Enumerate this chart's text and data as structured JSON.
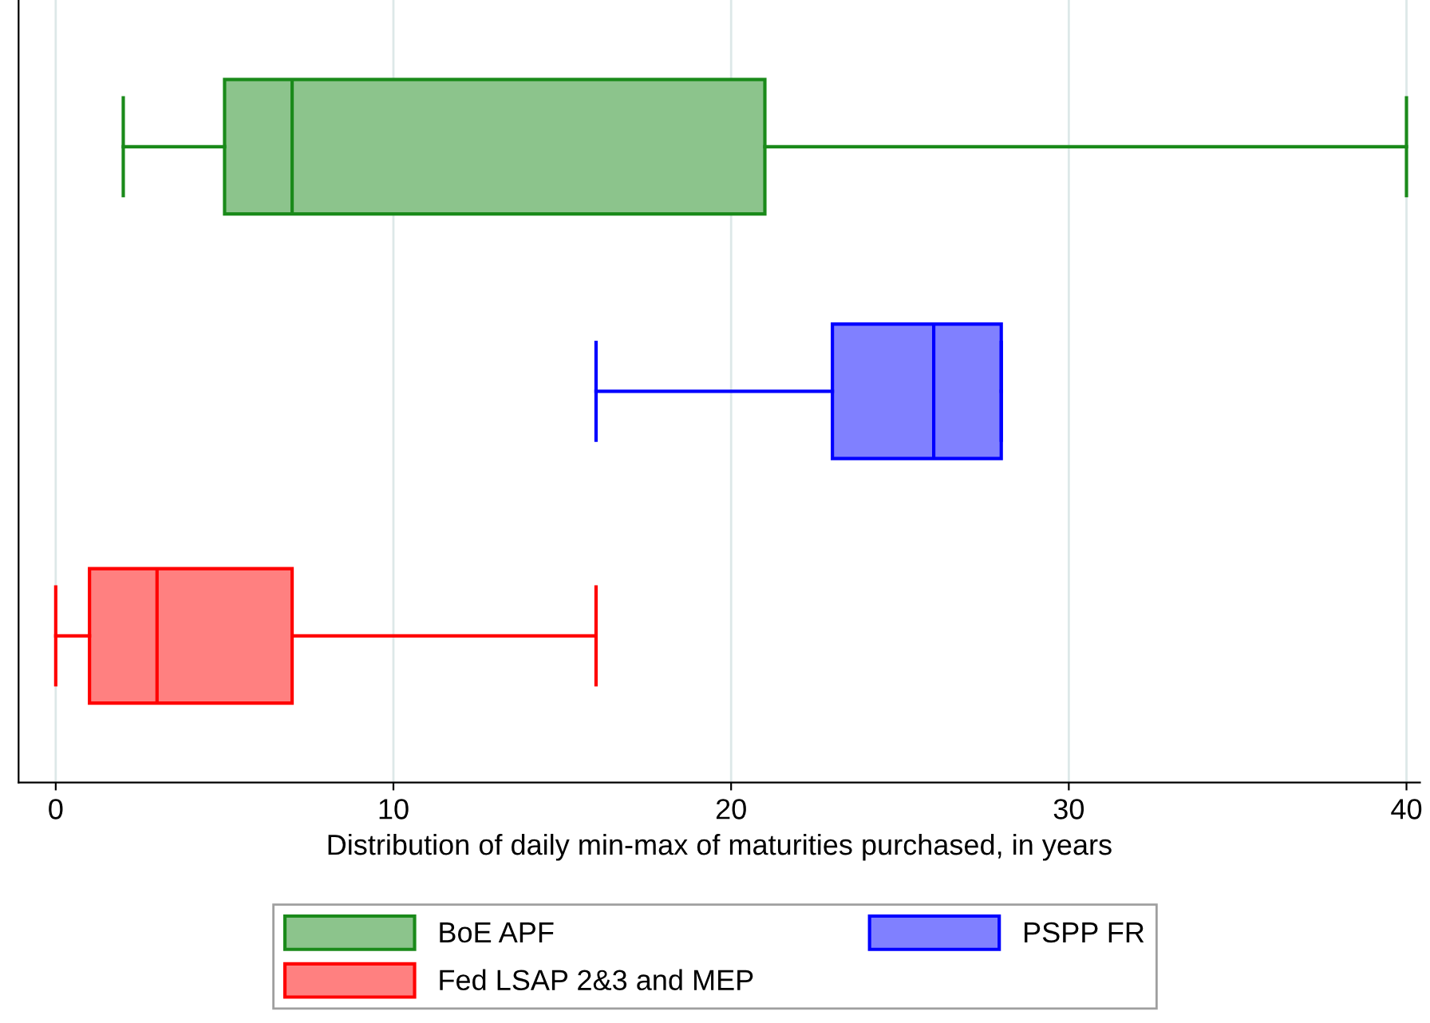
{
  "chart_data": {
    "type": "box",
    "orientation": "horizontal",
    "xlabel": "Distribution of daily min-max of maturities purchased, in years",
    "categories": [
      null,
      null,
      null
    ],
    "series": [
      {
        "name": "BoE APF",
        "color": "#1a8a1a",
        "boxes": [
          {
            "low": 2,
            "q1": 5,
            "median": 7,
            "q3": 21,
            "high": 40
          },
          null,
          null
        ]
      },
      {
        "name": "PSPP FR",
        "color": "#0000ff",
        "boxes": [
          null,
          {
            "low": 16,
            "q1": 23,
            "median": 26,
            "q3": 28,
            "high": 28
          },
          null
        ]
      },
      {
        "name": "Fed LSAP 2&3 and MEP",
        "color": "#ff0000",
        "boxes": [
          null,
          null,
          {
            "low": 0,
            "q1": 1,
            "median": 3,
            "q3": 7,
            "high": 16
          }
        ]
      }
    ],
    "xlim": [
      -1.1,
      40.4
    ],
    "xticks": [
      0,
      10,
      20,
      30,
      40
    ],
    "grid": "x",
    "legend": "bottom",
    "tick_labels": "x"
  }
}
